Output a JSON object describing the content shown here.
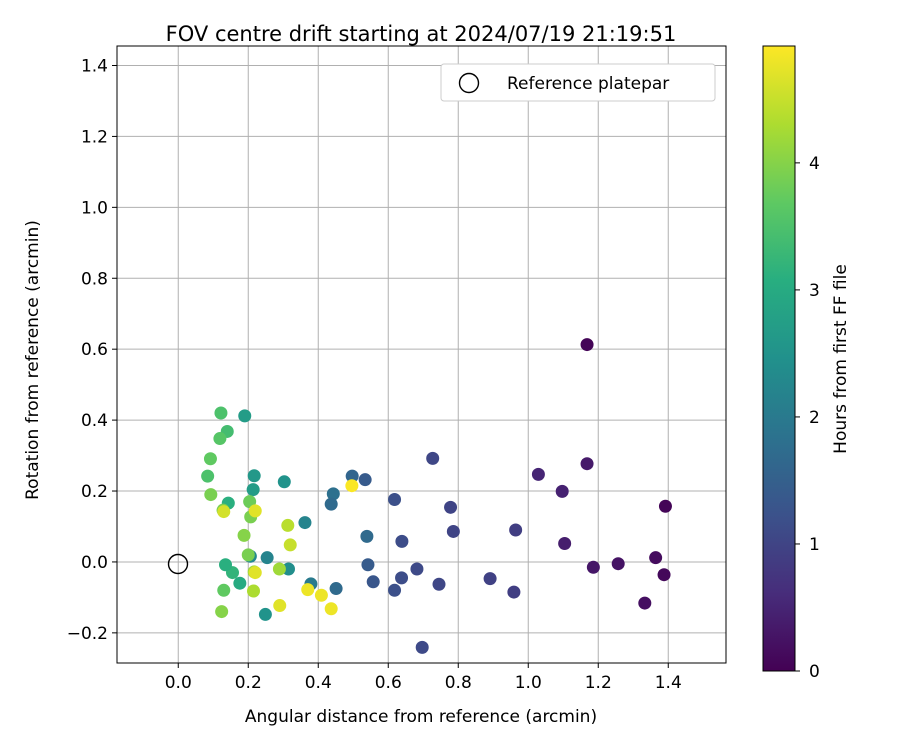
{
  "chart_data": {
    "type": "scatter",
    "title": "FOV centre drift starting at 2024/07/19 21:19:51",
    "xlabel": "Angular distance from reference (arcmin)",
    "ylabel": "Rotation from reference (arcmin)",
    "xlim": [
      -0.175,
      1.565
    ],
    "ylim": [
      -0.285,
      1.455
    ],
    "xticks": [
      "0.0",
      "0.2",
      "0.4",
      "0.6",
      "0.8",
      "1.0",
      "1.2",
      "1.4"
    ],
    "yticks": [
      "−0.2",
      "0.0",
      "0.2",
      "0.4",
      "0.6",
      "0.8",
      "1.0",
      "1.2",
      "1.4"
    ],
    "grid": true,
    "legend": {
      "placement": "top-right",
      "entries": [
        "Reference platepar"
      ]
    },
    "reference_point": {
      "x": 0.0,
      "y": 0.0,
      "label": "Reference platepar"
    },
    "colorbar": {
      "label": "Hours from first FF file",
      "range": [
        0,
        4.92
      ],
      "ticks": [
        "0",
        "1",
        "2",
        "3",
        "4"
      ],
      "colormap": "viridis"
    },
    "points": [
      {
        "x": 1.168,
        "y": 0.613,
        "c": 0.05
      },
      {
        "x": 1.392,
        "y": 0.157,
        "c": 0.05
      },
      {
        "x": 1.388,
        "y": -0.036,
        "c": 0.1
      },
      {
        "x": 1.364,
        "y": 0.012,
        "c": 0.15
      },
      {
        "x": 1.333,
        "y": -0.116,
        "c": 0.2
      },
      {
        "x": 1.257,
        "y": -0.005,
        "c": 0.25
      },
      {
        "x": 1.186,
        "y": -0.015,
        "c": 0.3
      },
      {
        "x": 1.168,
        "y": 0.277,
        "c": 0.35
      },
      {
        "x": 1.104,
        "y": 0.052,
        "c": 0.4
      },
      {
        "x": 1.097,
        "y": 0.199,
        "c": 0.45
      },
      {
        "x": 1.029,
        "y": 0.247,
        "c": 0.5
      },
      {
        "x": 0.964,
        "y": 0.09,
        "c": 0.9
      },
      {
        "x": 0.959,
        "y": -0.085,
        "c": 0.9
      },
      {
        "x": 0.891,
        "y": -0.047,
        "c": 0.95
      },
      {
        "x": 0.786,
        "y": 0.086,
        "c": 1.0
      },
      {
        "x": 0.778,
        "y": 0.154,
        "c": 1.0
      },
      {
        "x": 0.745,
        "y": -0.063,
        "c": 1.05
      },
      {
        "x": 0.727,
        "y": 0.292,
        "c": 1.05
      },
      {
        "x": 0.697,
        "y": -0.241,
        "c": 1.1
      },
      {
        "x": 0.682,
        "y": -0.02,
        "c": 1.1
      },
      {
        "x": 0.639,
        "y": 0.058,
        "c": 1.15
      },
      {
        "x": 0.638,
        "y": -0.045,
        "c": 1.15
      },
      {
        "x": 0.618,
        "y": 0.176,
        "c": 1.2
      },
      {
        "x": 0.618,
        "y": -0.08,
        "c": 1.2
      },
      {
        "x": 0.557,
        "y": -0.056,
        "c": 1.3
      },
      {
        "x": 0.542,
        "y": -0.008,
        "c": 1.4
      },
      {
        "x": 0.539,
        "y": 0.072,
        "c": 1.7
      },
      {
        "x": 0.534,
        "y": 0.232,
        "c": 1.4
      },
      {
        "x": 0.497,
        "y": 0.242,
        "c": 1.6
      },
      {
        "x": 0.451,
        "y": -0.075,
        "c": 1.7
      },
      {
        "x": 0.443,
        "y": 0.192,
        "c": 1.8
      },
      {
        "x": 0.437,
        "y": 0.163,
        "c": 1.7
      },
      {
        "x": 0.379,
        "y": -0.062,
        "c": 2.0
      },
      {
        "x": 0.362,
        "y": 0.111,
        "c": 2.2
      },
      {
        "x": 0.315,
        "y": -0.02,
        "c": 2.4
      },
      {
        "x": 0.303,
        "y": 0.226,
        "c": 2.5
      },
      {
        "x": 0.254,
        "y": 0.012,
        "c": 2.2
      },
      {
        "x": 0.249,
        "y": -0.148,
        "c": 2.5
      },
      {
        "x": 0.217,
        "y": 0.243,
        "c": 2.6
      },
      {
        "x": 0.214,
        "y": 0.204,
        "c": 2.7
      },
      {
        "x": 0.206,
        "y": 0.016,
        "c": 2.3
      },
      {
        "x": 0.19,
        "y": 0.412,
        "c": 2.7
      },
      {
        "x": 0.176,
        "y": -0.06,
        "c": 3.0
      },
      {
        "x": 0.155,
        "y": -0.03,
        "c": 3.2
      },
      {
        "x": 0.143,
        "y": 0.166,
        "c": 3.1
      },
      {
        "x": 0.135,
        "y": -0.008,
        "c": 3.1
      },
      {
        "x": 0.14,
        "y": 0.368,
        "c": 3.4
      },
      {
        "x": 0.122,
        "y": 0.42,
        "c": 3.5
      },
      {
        "x": 0.119,
        "y": 0.348,
        "c": 3.6
      },
      {
        "x": 0.092,
        "y": 0.291,
        "c": 3.7
      },
      {
        "x": 0.084,
        "y": 0.242,
        "c": 3.5
      },
      {
        "x": 0.093,
        "y": 0.19,
        "c": 3.9
      },
      {
        "x": 0.128,
        "y": 0.146,
        "c": 3.9
      },
      {
        "x": 0.13,
        "y": -0.08,
        "c": 3.7
      },
      {
        "x": 0.124,
        "y": -0.14,
        "c": 4.0
      },
      {
        "x": 0.188,
        "y": 0.075,
        "c": 4.0
      },
      {
        "x": 0.2,
        "y": 0.02,
        "c": 3.9
      },
      {
        "x": 0.204,
        "y": 0.17,
        "c": 3.8
      },
      {
        "x": 0.207,
        "y": 0.127,
        "c": 3.9
      },
      {
        "x": 0.215,
        "y": -0.082,
        "c": 4.3
      },
      {
        "x": 0.217,
        "y": -0.028,
        "c": 4.2
      },
      {
        "x": 0.289,
        "y": -0.02,
        "c": 4.2
      },
      {
        "x": 0.313,
        "y": 0.103,
        "c": 4.4
      },
      {
        "x": 0.32,
        "y": 0.048,
        "c": 4.5
      },
      {
        "x": 0.13,
        "y": 0.142,
        "c": 4.6
      },
      {
        "x": 0.22,
        "y": 0.144,
        "c": 4.7
      },
      {
        "x": 0.22,
        "y": -0.03,
        "c": 4.7
      },
      {
        "x": 0.29,
        "y": -0.123,
        "c": 4.7
      },
      {
        "x": 0.37,
        "y": -0.078,
        "c": 4.8
      },
      {
        "x": 0.409,
        "y": -0.094,
        "c": 4.8
      },
      {
        "x": 0.437,
        "y": -0.132,
        "c": 4.8
      },
      {
        "x": 0.496,
        "y": 0.215,
        "c": 4.9
      }
    ]
  }
}
